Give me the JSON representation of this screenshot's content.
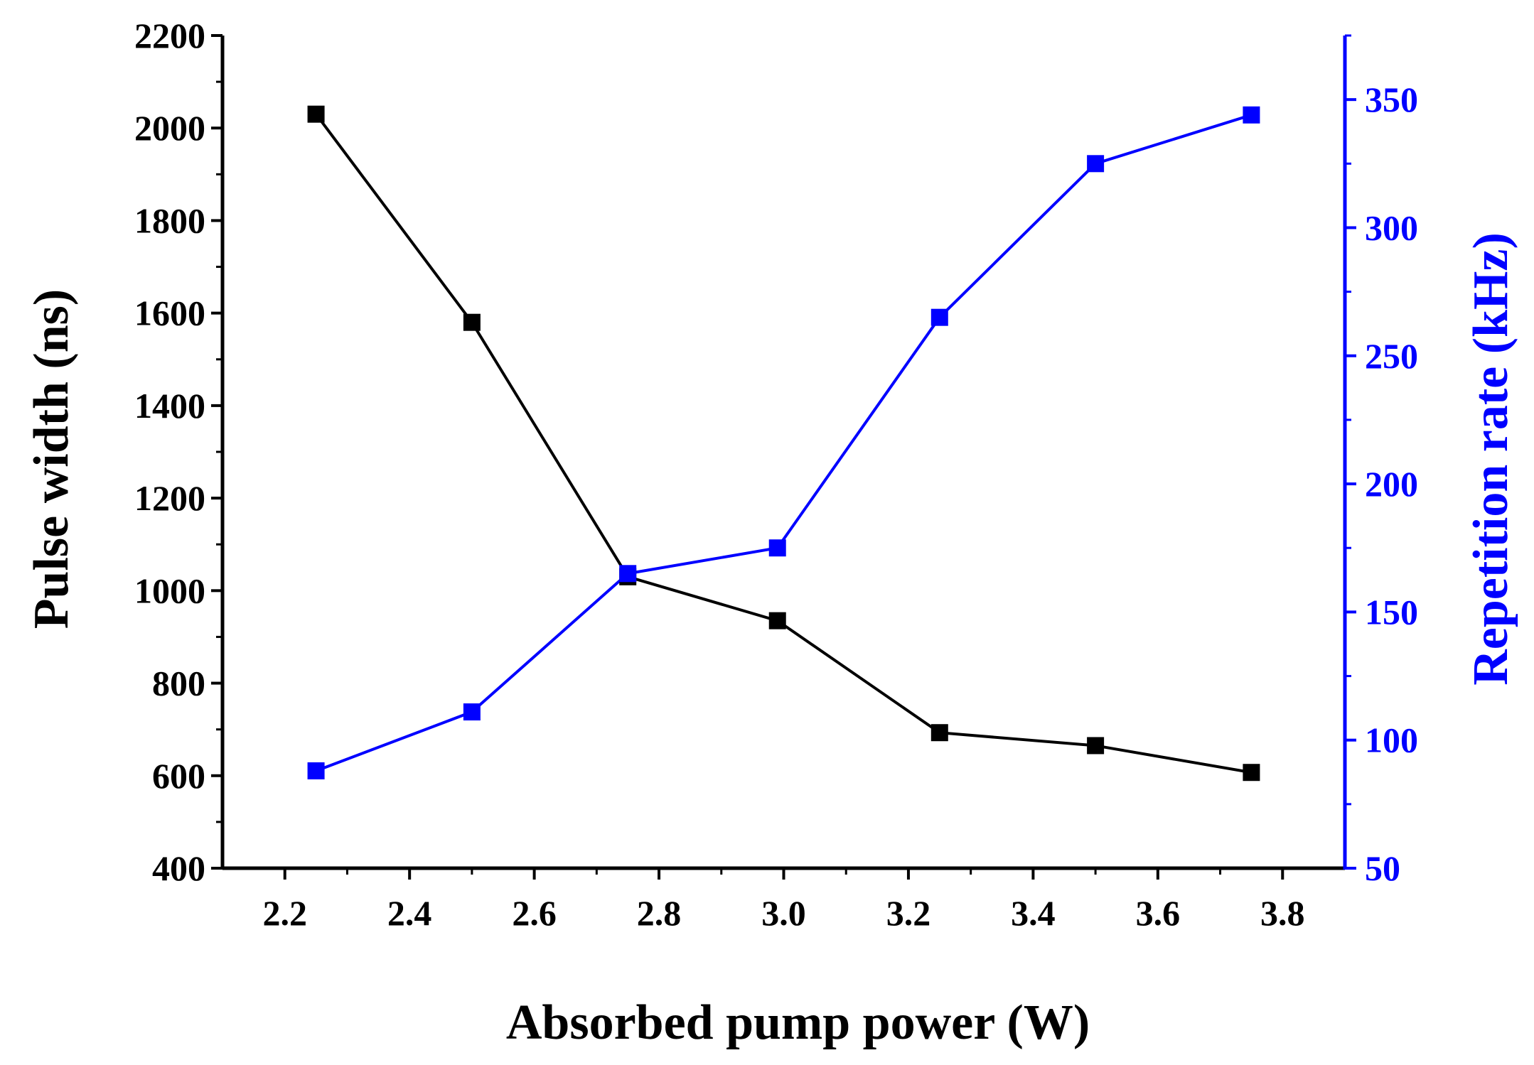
{
  "chart_data": {
    "type": "line",
    "title": "",
    "xlabel": "Absorbed pump power (W)",
    "ylabel_left": "Pulse width (ns)",
    "ylabel_right": "Repetition rate (kHz)",
    "xlim": [
      2.1,
      3.9
    ],
    "ylim_left": [
      400,
      2200
    ],
    "ylim_right": [
      50,
      375
    ],
    "x_ticks": [
      2.2,
      2.4,
      2.6,
      2.8,
      3.0,
      3.2,
      3.4,
      3.6,
      3.8
    ],
    "x_tick_labels": [
      "2.2",
      "2.4",
      "2.6",
      "2.8",
      "3.0",
      "3.2",
      "3.4",
      "3.6",
      "3.8"
    ],
    "y_left_ticks": [
      400,
      600,
      800,
      1000,
      1200,
      1400,
      1600,
      1800,
      2000,
      2200
    ],
    "y_left_tick_labels": [
      "400",
      "600",
      "800",
      "1000",
      "1200",
      "1400",
      "1600",
      "1800",
      "2000",
      "2200"
    ],
    "y_right_ticks": [
      50,
      100,
      150,
      200,
      250,
      300,
      350
    ],
    "y_right_tick_labels": [
      "50",
      "100",
      "150",
      "200",
      "250",
      "300",
      "350"
    ],
    "grid": false,
    "series": [
      {
        "name": "Pulse width",
        "axis": "left",
        "color": "#000000",
        "x": [
          2.25,
          2.5,
          2.75,
          2.99,
          3.25,
          3.5,
          3.75
        ],
        "values": [
          2030,
          1580,
          1030,
          935,
          693,
          665,
          607
        ]
      },
      {
        "name": "Repetition rate",
        "axis": "right",
        "color": "#0000ff",
        "x": [
          2.25,
          2.5,
          2.75,
          2.99,
          3.25,
          3.5,
          3.75
        ],
        "values": [
          88,
          111,
          165,
          175,
          265,
          325,
          344
        ]
      }
    ]
  }
}
